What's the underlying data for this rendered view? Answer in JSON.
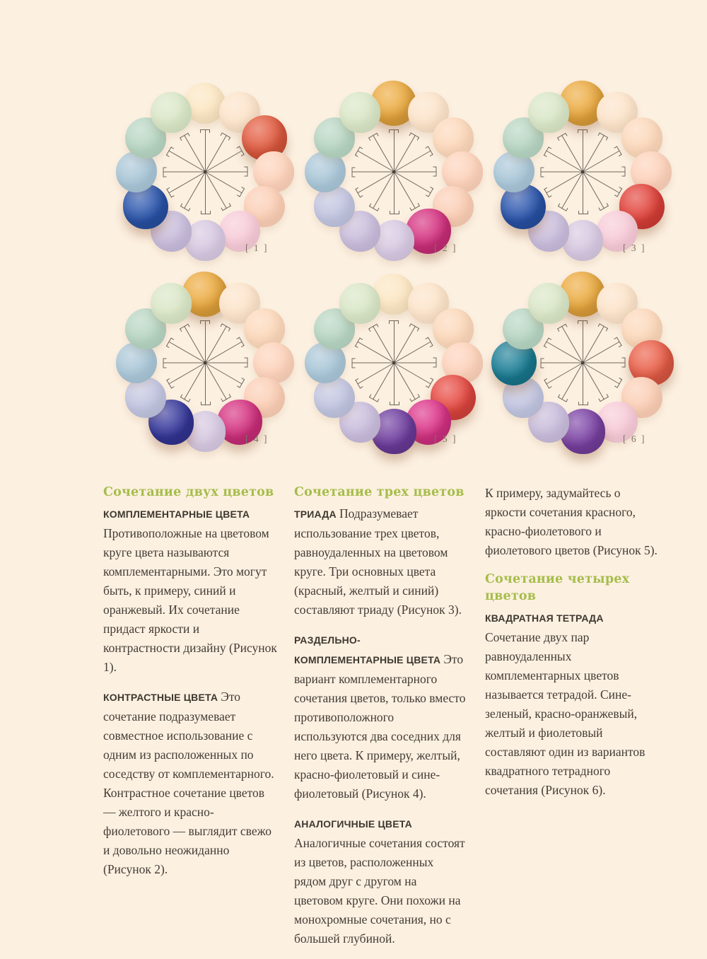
{
  "page": {
    "background": "#fcf0e1",
    "text_color": "#433c34",
    "heading_color": "#a6bd4a",
    "spoke_color": "#6f675c",
    "label_color": "#7d7365"
  },
  "wheels": [
    {
      "label": "[ 1 ]",
      "balls": [
        "#fbe6c2",
        "#fce3c9",
        "#e25a3e",
        "#fdd2ba",
        "#fbceb5",
        "#f7cbd8",
        "#d6c8e1",
        "#c8bcdb",
        "#2a55ad",
        "#a9c6d7",
        "#b7d5c2",
        "#d9e6c6"
      ],
      "highlighted": [
        2,
        8
      ]
    },
    {
      "label": "[ 2 ]",
      "balls": [
        "#ecaa3e",
        "#fce3c9",
        "#fcd8ba",
        "#fdd2ba",
        "#fbceb5",
        "#d5307f",
        "#d6c8e1",
        "#c8bcdb",
        "#c1c4df",
        "#a9c6d7",
        "#b7d5c2",
        "#d9e6c6"
      ],
      "highlighted": [
        0,
        5
      ]
    },
    {
      "label": "[ 3 ]",
      "balls": [
        "#ecaa3e",
        "#fce3c9",
        "#fcd8ba",
        "#fdd2ba",
        "#e2423a",
        "#f7cbd8",
        "#d6c8e1",
        "#c8bcdb",
        "#2a55ad",
        "#a9c6d7",
        "#b7d5c2",
        "#d9e6c6"
      ],
      "highlighted": [
        0,
        4,
        8
      ]
    },
    {
      "label": "[ 4 ]",
      "balls": [
        "#ecaa3e",
        "#fce3c9",
        "#fcd8ba",
        "#fdd2ba",
        "#fbceb5",
        "#d5307f",
        "#d6c8e1",
        "#35379b",
        "#c1c4df",
        "#a9c6d7",
        "#b7d5c2",
        "#d9e6c6"
      ],
      "highlighted": [
        0,
        5,
        7
      ]
    },
    {
      "label": "[ 5 ]",
      "balls": [
        "#fbe6c2",
        "#fce3c9",
        "#fcd8ba",
        "#fdd2ba",
        "#e74840",
        "#dd3389",
        "#6f3da0",
        "#c8bcdb",
        "#c1c4df",
        "#a9c6d7",
        "#b7d5c2",
        "#d9e6c6"
      ],
      "highlighted": [
        4,
        5,
        6
      ]
    },
    {
      "label": "[ 6 ]",
      "balls": [
        "#ecaa3e",
        "#fce3c9",
        "#fcd8ba",
        "#ea5e47",
        "#fbceb5",
        "#f7cbd8",
        "#7b42a5",
        "#c8bcdb",
        "#c1c4df",
        "#1a7e96",
        "#b7d5c2",
        "#d9e6c6"
      ],
      "highlighted": [
        0,
        3,
        6,
        9
      ]
    }
  ],
  "columns": [
    {
      "items": [
        {
          "type": "heading",
          "text": "Сочетание двух цветов"
        },
        {
          "type": "paragraph",
          "lead": "КОМПЛЕМЕНТАРНЫЕ ЦВЕТА",
          "text": "Противоположные на цветовом круге цвета называются комплементарными. Это могут быть, к примеру, синий и оранжевый. Их сочетание придаст яркости и контрастности дизайну (Рисунок 1)."
        },
        {
          "type": "paragraph",
          "lead": "КОНТРАСТНЫЕ ЦВЕТА",
          "text": "Это сочетание подразумевает совместное использование с одним из расположенных по соседству от комплементарного. Контрастное сочетание цветов — желтого и красно-фиолетового — выглядит свежо и довольно неожиданно (Рисунок 2)."
        }
      ]
    },
    {
      "items": [
        {
          "type": "heading",
          "text": "Сочетание трех цветов"
        },
        {
          "type": "paragraph",
          "lead": "ТРИАДА",
          "text": "Подразумевает использование трех цветов, равноудаленных на цветовом круге. Три основных цвета (красный, желтый и синий) составляют триаду (Рисунок 3)."
        },
        {
          "type": "paragraph",
          "lead": "РАЗДЕЛЬНО-КОМПЛЕМЕНТАРНЫЕ ЦВЕТА",
          "text": "Это вариант комплементарного сочетания цветов, только вместо противоположного используются два соседних для него цвета. К примеру, желтый, красно-фиолетовый и сине-фиолетовый (Рисунок 4)."
        },
        {
          "type": "paragraph",
          "lead": "АНАЛОГИЧНЫЕ ЦВЕТА",
          "text": "Аналогичные сочетания состоят из цветов, расположенных рядом друг с другом на цветовом круге. Они похожи на монохромные сочетания, но с большей глубиной."
        }
      ]
    },
    {
      "items": [
        {
          "type": "paragraph",
          "lead": "",
          "text": "К примеру, задумайтесь о яркости сочетания красного, красно-фиолетового и фиолетового цветов (Рисунок 5)."
        },
        {
          "type": "heading",
          "text": "Сочетание четырех цветов"
        },
        {
          "type": "paragraph",
          "lead": "КВАДРАТНАЯ ТЕТРАДА",
          "text": "Сочетание двух пар равноудаленных комплементарных цветов называется тетрадой. Сине-зеленый, красно-оранжевый, желтый и фиолетовый составляют один из вариантов квадратного тетрадного сочетания (Рисунок 6)."
        }
      ]
    }
  ]
}
